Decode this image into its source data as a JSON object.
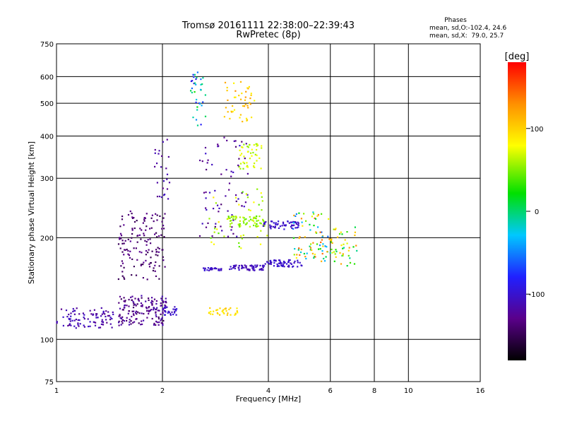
{
  "chart_data": {
    "type": "scatter",
    "title": "Tromsø 20161111 22:38:00–22:39:43",
    "subtitle": "RwPretec (8p)",
    "xlabel": "Frequency [MHz]",
    "ylabel": "Stationary phase Virtual Height [km]",
    "x_scale": "log",
    "y_scale": "log",
    "xlim": [
      1,
      16
    ],
    "ylim": [
      75,
      750
    ],
    "grid": true,
    "x_ticks": [
      "1",
      "2",
      "4",
      "6",
      "8",
      "10",
      "16"
    ],
    "y_ticks": [
      "75",
      "100",
      "200",
      "300",
      "400",
      "500",
      "600",
      "750"
    ],
    "phase_box": {
      "title": "Phases",
      "line1": "mean, sd,O:-102.4, 24.6",
      "line2": "mean, sd,X:  79.0, 25.7"
    },
    "colorbar": {
      "label": "[deg]",
      "range": [
        -180,
        180
      ],
      "ticks": [
        "100",
        "0",
        "-100"
      ],
      "tick_values": [
        100,
        0,
        -100
      ]
    },
    "clusters": [
      {
        "x": [
          1.0,
          1.45
        ],
        "y": [
          108,
          124
        ],
        "phase": [
          -130,
          -100
        ],
        "n": 90
      },
      {
        "x": [
          1.5,
          2.05
        ],
        "y": [
          110,
          135
        ],
        "phase": [
          -145,
          -110
        ],
        "n": 160
      },
      {
        "x": [
          1.5,
          2.05
        ],
        "y": [
          150,
          240
        ],
        "phase": [
          -150,
          -125
        ],
        "n": 140
      },
      {
        "x": [
          1.9,
          2.1
        ],
        "y": [
          260,
          400
        ],
        "phase": [
          -130,
          -105
        ],
        "n": 25
      },
      {
        "x": [
          2.0,
          2.2
        ],
        "y": [
          118,
          125
        ],
        "phase": [
          -110,
          -95
        ],
        "n": 25
      },
      {
        "x": [
          2.4,
          2.65
        ],
        "y": [
          430,
          620
        ],
        "phase": [
          -100,
          30
        ],
        "n": 35
      },
      {
        "x": [
          2.55,
          3.5
        ],
        "y": [
          200,
          400
        ],
        "phase": [
          -140,
          -100
        ],
        "n": 70
      },
      {
        "x": [
          2.6,
          2.95
        ],
        "y": [
          160,
          163
        ],
        "phase": [
          -110,
          -95
        ],
        "n": 25
      },
      {
        "x": [
          2.7,
          3.3
        ],
        "y": [
          118,
          124
        ],
        "phase": [
          80,
          110
        ],
        "n": 35
      },
      {
        "x": [
          2.7,
          4.0
        ],
        "y": [
          185,
          280
        ],
        "phase": [
          40,
          90
        ],
        "n": 45
      },
      {
        "x": [
          3.0,
          3.65
        ],
        "y": [
          440,
          580
        ],
        "phase": [
          80,
          130
        ],
        "n": 45
      },
      {
        "x": [
          3.3,
          3.85
        ],
        "y": [
          320,
          380
        ],
        "phase": [
          50,
          80
        ],
        "n": 45
      },
      {
        "x": [
          3.05,
          3.9
        ],
        "y": [
          215,
          232
        ],
        "phase": [
          40,
          70
        ],
        "n": 60
      },
      {
        "x": [
          3.8,
          4.9
        ],
        "y": [
          212,
          224
        ],
        "phase": [
          -110,
          -95
        ],
        "n": 60
      },
      {
        "x": [
          3.1,
          3.9
        ],
        "y": [
          160,
          166
        ],
        "phase": [
          -115,
          -100
        ],
        "n": 60
      },
      {
        "x": [
          3.9,
          5.0
        ],
        "y": [
          164,
          172
        ],
        "phase": [
          -110,
          -95
        ],
        "n": 60
      },
      {
        "x": [
          4.7,
          6.0
        ],
        "y": [
          168,
          240
        ],
        "phase": [
          -60,
          150
        ],
        "n": 80
      },
      {
        "x": [
          6.0,
          7.2
        ],
        "y": [
          165,
          215
        ],
        "phase": [
          -20,
          130
        ],
        "n": 45
      }
    ]
  }
}
